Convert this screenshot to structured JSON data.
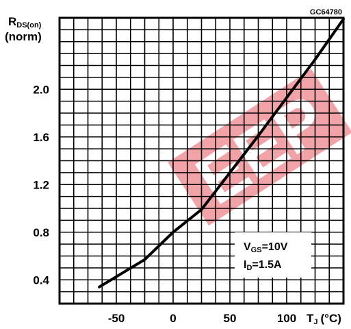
{
  "figure_code": "GC64780",
  "chart_data": {
    "type": "line",
    "ylabel_main": "R",
    "ylabel_sub": "DS(on)",
    "ylabel_norm": "(norm)",
    "xlabel_main": "T",
    "xlabel_sub": "J",
    "xlabel_unit": "(°C)",
    "x_ticks": [
      "-50",
      "0",
      "50",
      "100"
    ],
    "x_tick_values": [
      -50,
      0,
      50,
      100
    ],
    "y_ticks": [
      "0.4",
      "0.8",
      "1.2",
      "1.6",
      "2.0"
    ],
    "y_tick_values": [
      0.4,
      0.8,
      1.2,
      1.6,
      2.0
    ],
    "xlim": [
      -100,
      150
    ],
    "ylim": [
      0.2,
      2.6
    ],
    "grid": true,
    "series": [
      {
        "x": [
          -65,
          -25,
          0,
          25,
          50,
          75,
          100,
          125,
          150
        ],
        "y": [
          0.34,
          0.57,
          0.8,
          0.99,
          1.3,
          1.61,
          1.93,
          2.25,
          2.59
        ]
      }
    ],
    "annotation": {
      "vgs_main": "V",
      "vgs_sub": "GS",
      "vgs_value": "=10V",
      "id_main": "I",
      "id_sub": "D",
      "id_value": "=1.5A"
    }
  },
  "watermark": {
    "text": "EEP",
    "color": "#e8303a"
  }
}
